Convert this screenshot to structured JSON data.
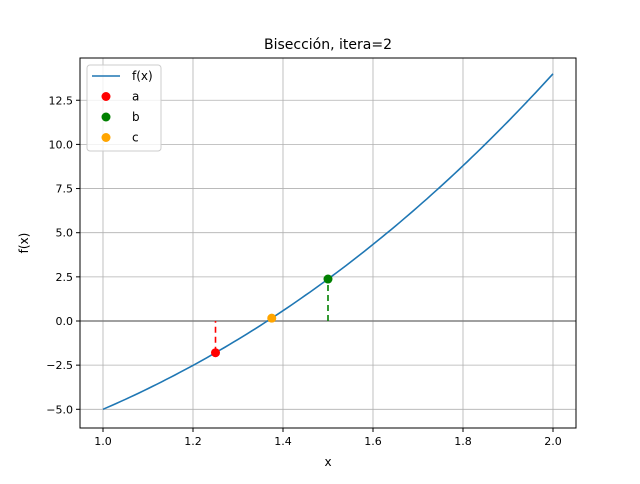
{
  "chart_data": {
    "type": "line",
    "title": "Bisección, itera=2",
    "xlabel": "x",
    "ylabel": "f(x)",
    "xlim": [
      0.95,
      2.05
    ],
    "ylim": [
      -6.06,
      15.35
    ],
    "grid": true,
    "legend_position": "upper left",
    "xticks": [
      1.0,
      1.2,
      1.4,
      1.6,
      1.8,
      2.0
    ],
    "xtick_labels": [
      "1.0",
      "1.2",
      "1.4",
      "1.6",
      "1.8",
      "2.0"
    ],
    "yticks": [
      -5.0,
      -2.5,
      0.0,
      2.5,
      5.0,
      7.5,
      10.0,
      12.5
    ],
    "ytick_labels": [
      "−5.0",
      "−2.5",
      "0.0",
      "2.5",
      "5.0",
      "7.5",
      "10.0",
      "12.5"
    ],
    "series": [
      {
        "name": "f(x)",
        "kind": "line",
        "color": "#1f77b4",
        "x": [
          1.0,
          1.1,
          1.2,
          1.3,
          1.4,
          1.5,
          1.6,
          1.7,
          1.8,
          1.9,
          2.0
        ],
        "y": [
          -5.0,
          -3.829,
          -2.512,
          -1.043,
          0.584,
          2.375,
          4.336,
          6.473,
          8.792,
          11.299,
          14.0
        ]
      },
      {
        "name": "a",
        "kind": "point",
        "color": "#ff0000",
        "x": [
          1.25
        ],
        "y": [
          -1.797
        ]
      },
      {
        "name": "b",
        "kind": "point",
        "color": "#008000",
        "x": [
          1.5
        ],
        "y": [
          2.375
        ]
      },
      {
        "name": "c",
        "kind": "point",
        "color": "#ffa500",
        "x": [
          1.375
        ],
        "y": [
          0.162
        ]
      }
    ],
    "annotations": [
      {
        "type": "vline-dashed",
        "x": 1.25,
        "y0": -1.797,
        "y1": 0,
        "color": "#ff0000"
      },
      {
        "type": "vline-dashed",
        "x": 1.5,
        "y0": 0,
        "y1": 2.375,
        "color": "#008000"
      },
      {
        "type": "hline",
        "y": 0,
        "color": "#808080"
      }
    ]
  }
}
